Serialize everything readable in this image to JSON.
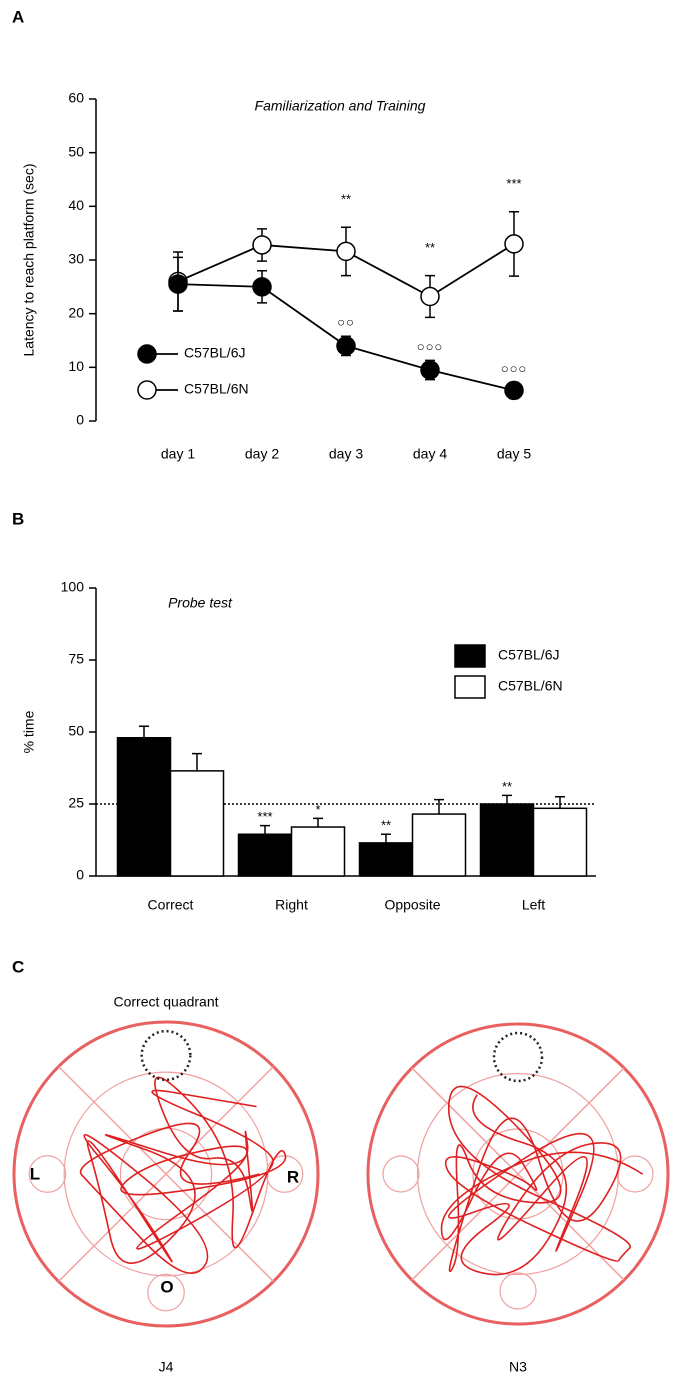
{
  "panel_labels": [
    "A",
    "B",
    "C"
  ],
  "chart_data": [
    {
      "type": "line",
      "title": "Familiarization and Training",
      "y_label": "Latency to reach platform (sec)",
      "categories": [
        "day 1",
        "day 2",
        "day 3",
        "day 4",
        "day 5"
      ],
      "ylim": [
        0,
        60
      ],
      "yticks": [
        0,
        10,
        20,
        30,
        40,
        50,
        60
      ],
      "legend": "left",
      "series": [
        {
          "name": "C57BL/6J",
          "color": "#000000",
          "fill": "#000000",
          "values": [
            25.5,
            25,
            14,
            9.5,
            5.7
          ],
          "errors": [
            5,
            3,
            1.8,
            1.8,
            1.5
          ],
          "markers": [
            null,
            null,
            "○○",
            "○○○",
            "○○○"
          ]
        },
        {
          "name": "C57BL/6N",
          "color": "#000000",
          "fill": "#ffffff",
          "values": [
            26,
            32.8,
            31.6,
            23.2,
            33
          ],
          "errors": [
            5.5,
            3,
            4.5,
            3.9,
            6
          ],
          "markers": [
            null,
            null,
            "**",
            "**",
            "***"
          ]
        }
      ]
    },
    {
      "type": "bar",
      "title": "Probe test",
      "y_label": "% time",
      "categories": [
        "Correct",
        "Right",
        "Opposite",
        "Left"
      ],
      "ylim": [
        0,
        100
      ],
      "yticks": [
        0,
        25,
        50,
        75,
        100
      ],
      "reference_line": 25,
      "legend": "upper right",
      "series": [
        {
          "name": "C57BL/6J",
          "color": "#000000",
          "fill": "#000000",
          "values": [
            48,
            14.5,
            11.5,
            25
          ],
          "errors": [
            4,
            3,
            3,
            3
          ],
          "markers": [
            null,
            "***",
            "**",
            "**"
          ]
        },
        {
          "name": "C57BL/6N",
          "color": "#000000",
          "fill": "#ffffff",
          "values": [
            36.5,
            17,
            21.5,
            23.5
          ],
          "errors": [
            6,
            3,
            5,
            4
          ],
          "markers": [
            null,
            "*",
            null,
            null
          ]
        }
      ]
    }
  ],
  "tracks": {
    "title": "Correct quadrant",
    "maps": [
      {
        "name": "J4",
        "quadrant_labels": [
          "L",
          "R",
          "O"
        ]
      },
      {
        "name": "N3"
      }
    ]
  }
}
